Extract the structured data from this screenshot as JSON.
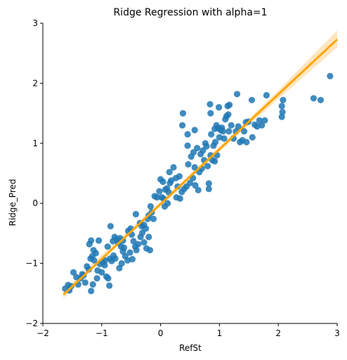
{
  "chart_data": {
    "type": "scatter",
    "title": "Ridge Regression with alpha=1",
    "xlabel": "RefSt",
    "ylabel": "Ridge_Pred",
    "xlim": [
      -2,
      3
    ],
    "ylim": [
      -2,
      3
    ],
    "xticks": [
      -2,
      -1,
      0,
      1,
      2,
      3
    ],
    "xtick_labels": [
      "−2",
      "−1",
      "0",
      "1",
      "2",
      "3"
    ],
    "yticks": [
      -2,
      -1,
      0,
      1,
      2,
      3
    ],
    "ytick_labels": [
      "−2",
      "−1",
      "0",
      "1",
      "2",
      "3"
    ],
    "grid": false,
    "point_color": "#1f77b4",
    "line_color": "#ffa500",
    "band_color": "#ffe5bf",
    "regression_line": {
      "x": [
        -1.65,
        3.0
      ],
      "y": [
        -1.52,
        2.73
      ]
    },
    "confidence_band": {
      "x": [
        -1.65,
        -1.0,
        0.0,
        1.0,
        2.0,
        3.0
      ],
      "lower": [
        -1.58,
        -0.95,
        -0.05,
        0.86,
        1.74,
        2.6
      ],
      "upper": [
        -1.46,
        -0.86,
        0.03,
        0.94,
        1.88,
        2.88
      ]
    },
    "points": [
      [
        -1.62,
        -1.42
      ],
      [
        -1.55,
        -1.45
      ],
      [
        -1.57,
        -1.36
      ],
      [
        -1.52,
        -1.38
      ],
      [
        -1.48,
        -1.15
      ],
      [
        -1.43,
        -1.23
      ],
      [
        -1.4,
        -1.35
      ],
      [
        -1.36,
        -1.25
      ],
      [
        -1.33,
        -1.18
      ],
      [
        -1.31,
        -1.2
      ],
      [
        -1.28,
        -1.32
      ],
      [
        -1.25,
        -1.05
      ],
      [
        -1.22,
        -1.1
      ],
      [
        -1.19,
        -0.92
      ],
      [
        -1.16,
        -0.88
      ],
      [
        -1.13,
        -0.95
      ],
      [
        -1.21,
        -0.68
      ],
      [
        -1.18,
        -0.62
      ],
      [
        -1.14,
        -0.78
      ],
      [
        -1.1,
        -0.83
      ],
      [
        -1.07,
        -1.12
      ],
      [
        -1.03,
        -1.01
      ],
      [
        -0.98,
        -0.98
      ],
      [
        -0.95,
        -1.03
      ],
      [
        -0.92,
        -1.22
      ],
      [
        -0.89,
        -1.25
      ],
      [
        -0.87,
        -1.37
      ],
      [
        -1.08,
        -1.25
      ],
      [
        -1.18,
        -1.46
      ],
      [
        -1.15,
        -1.35
      ],
      [
        -0.9,
        -0.72
      ],
      [
        -0.86,
        -0.92
      ],
      [
        -0.83,
        -0.96
      ],
      [
        -0.8,
        -0.87
      ],
      [
        -0.77,
        -0.92
      ],
      [
        -0.85,
        -0.38
      ],
      [
        -0.78,
        -0.56
      ],
      [
        -0.75,
        -0.6
      ],
      [
        -0.72,
        -0.66
      ],
      [
        -0.69,
        -0.58
      ],
      [
        -0.67,
        -0.72
      ],
      [
        -0.64,
        -0.8
      ],
      [
        -0.62,
        -0.74
      ],
      [
        -0.6,
        -0.88
      ],
      [
        -0.56,
        -0.95
      ],
      [
        -0.7,
        -1.08
      ],
      [
        -0.66,
        -1.0
      ],
      [
        -0.55,
        -0.46
      ],
      [
        -0.51,
        -0.42
      ],
      [
        -0.49,
        -0.52
      ],
      [
        -0.46,
        -0.63
      ],
      [
        -0.43,
        -0.72
      ],
      [
        -0.41,
        -0.78
      ],
      [
        -0.38,
        -0.68
      ],
      [
        -0.34,
        -0.56
      ],
      [
        -0.31,
        -0.49
      ],
      [
        -0.48,
        -0.93
      ],
      [
        -0.35,
        -0.33
      ],
      [
        -0.32,
        -0.38
      ],
      [
        -0.28,
        -0.36
      ],
      [
        -0.25,
        -0.42
      ],
      [
        -0.22,
        -0.26
      ],
      [
        -0.2,
        -0.2
      ],
      [
        -0.17,
        -0.05
      ],
      [
        -0.12,
        -0.26
      ],
      [
        -0.2,
        -0.56
      ],
      [
        -0.24,
        -0.75
      ],
      [
        -0.18,
        -0.78
      ],
      [
        -0.28,
        -0.65
      ],
      [
        -0.15,
        -0.15
      ],
      [
        -0.1,
        0.12
      ],
      [
        -0.06,
        0.1
      ],
      [
        -0.02,
        0.2
      ],
      [
        0.02,
        0.1
      ],
      [
        0.05,
        0.08
      ],
      [
        0.0,
        0.4
      ],
      [
        0.04,
        0.36
      ],
      [
        0.08,
        0.23
      ],
      [
        0.11,
        0.25
      ],
      [
        0.14,
        0.18
      ],
      [
        0.07,
        -0.05
      ],
      [
        0.12,
        0.0
      ],
      [
        0.16,
        0.34
      ],
      [
        0.18,
        0.38
      ],
      [
        0.22,
        0.6
      ],
      [
        0.26,
        0.42
      ],
      [
        0.29,
        0.28
      ],
      [
        0.32,
        0.45
      ],
      [
        0.36,
        0.19
      ],
      [
        0.4,
        0.24
      ],
      [
        0.33,
        0.08
      ],
      [
        0.44,
        0.28
      ],
      [
        0.47,
        0.65
      ],
      [
        0.5,
        0.34
      ],
      [
        0.55,
        0.42
      ],
      [
        0.58,
        0.6
      ],
      [
        0.62,
        0.92
      ],
      [
        0.66,
        0.52
      ],
      [
        0.7,
        0.58
      ],
      [
        0.74,
        0.72
      ],
      [
        0.46,
        0.96
      ],
      [
        0.52,
        0.78
      ],
      [
        0.56,
        0.85
      ],
      [
        0.64,
        0.22
      ],
      [
        0.82,
        0.24
      ],
      [
        0.78,
        0.95
      ],
      [
        0.8,
        0.62
      ],
      [
        0.85,
        0.8
      ],
      [
        0.88,
        0.72
      ],
      [
        0.9,
        0.96
      ],
      [
        0.93,
        1.02
      ],
      [
        0.96,
        0.8
      ],
      [
        1.0,
        1.1
      ],
      [
        1.04,
        1.26
      ],
      [
        1.08,
        1.08
      ],
      [
        0.76,
        1.0
      ],
      [
        0.86,
        1.15
      ],
      [
        0.92,
        1.24
      ],
      [
        0.95,
        1.3
      ],
      [
        0.98,
        1.25
      ],
      [
        1.02,
        1.22
      ],
      [
        1.06,
        1.2
      ],
      [
        1.1,
        1.4
      ],
      [
        1.12,
        1.45
      ],
      [
        1.14,
        1.62
      ],
      [
        1.16,
        1.2
      ],
      [
        1.2,
        1.3
      ],
      [
        1.24,
        1.08
      ],
      [
        1.28,
        1.2
      ],
      [
        1.32,
        1.28
      ],
      [
        0.84,
        1.65
      ],
      [
        0.85,
        1.5
      ],
      [
        0.58,
        1.22
      ],
      [
        0.38,
        1.5
      ],
      [
        0.46,
        1.15
      ],
      [
        0.99,
        1.6
      ],
      [
        1.15,
        1.48
      ],
      [
        1.3,
        1.82
      ],
      [
        1.35,
        1.02
      ],
      [
        1.39,
        1.05
      ],
      [
        1.42,
        1.2
      ],
      [
        1.45,
        1.35
      ],
      [
        1.49,
        1.36
      ],
      [
        1.55,
        1.72
      ],
      [
        1.6,
        1.31
      ],
      [
        1.64,
        1.28
      ],
      [
        1.68,
        1.38
      ],
      [
        1.72,
        1.3
      ],
      [
        1.77,
        1.38
      ],
      [
        1.8,
        1.8
      ],
      [
        1.56,
        1.1
      ],
      [
        2.06,
        1.62
      ],
      [
        2.07,
        1.52
      ],
      [
        2.06,
        1.44
      ],
      [
        2.08,
        1.72
      ],
      [
        2.6,
        1.75
      ],
      [
        2.72,
        1.72
      ],
      [
        2.88,
        2.12
      ],
      [
        0.72,
        0.88
      ],
      [
        0.82,
        0.33
      ],
      [
        -0.52,
        -0.82
      ],
      [
        0.27,
        0.1
      ],
      [
        -1.05,
        -0.62
      ],
      [
        -0.64,
        -0.62
      ],
      [
        -0.94,
        -0.95
      ],
      [
        0.37,
        1.3
      ],
      [
        1.46,
        1.02
      ],
      [
        0.92,
        0.7
      ],
      [
        0.59,
        0.3
      ],
      [
        -0.81,
        -0.63
      ],
      [
        -0.42,
        -0.18
      ],
      [
        0.15,
        0.52
      ],
      [
        -1.0,
        -1.15
      ],
      [
        1.17,
        1.64
      ],
      [
        0.68,
        0.82
      ]
    ]
  }
}
